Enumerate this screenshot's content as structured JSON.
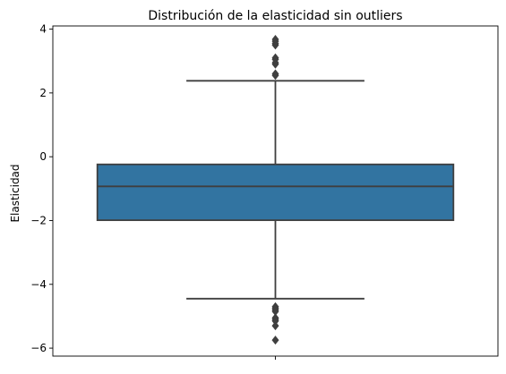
{
  "chart_data": {
    "type": "box",
    "title": "Distribución de la elasticidad sin outliers",
    "xlabel": "",
    "ylabel": "Elasticidad",
    "ylim": [
      -6.25,
      4.1
    ],
    "yticks": [
      -6,
      -4,
      -2,
      0,
      2,
      4
    ],
    "ytick_labels": [
      "−6",
      "−4",
      "−2",
      "0",
      "2",
      "4"
    ],
    "xticks": [
      0
    ],
    "xtick_labels": [
      ""
    ],
    "grid": false,
    "legend": "none",
    "box": {
      "median": -0.93,
      "q1": -1.99,
      "q3": -0.24,
      "whisker_low": -4.45,
      "whisker_high": 2.38,
      "color": "#3274a1",
      "outliers_high": [
        2.55,
        2.6,
        2.9,
        2.95,
        3.05,
        3.1,
        3.5,
        3.55,
        3.62,
        3.68
      ],
      "outliers_low": [
        -4.7,
        -4.75,
        -4.8,
        -4.85,
        -5.05,
        -5.1,
        -5.15,
        -5.3,
        -5.75
      ]
    }
  }
}
